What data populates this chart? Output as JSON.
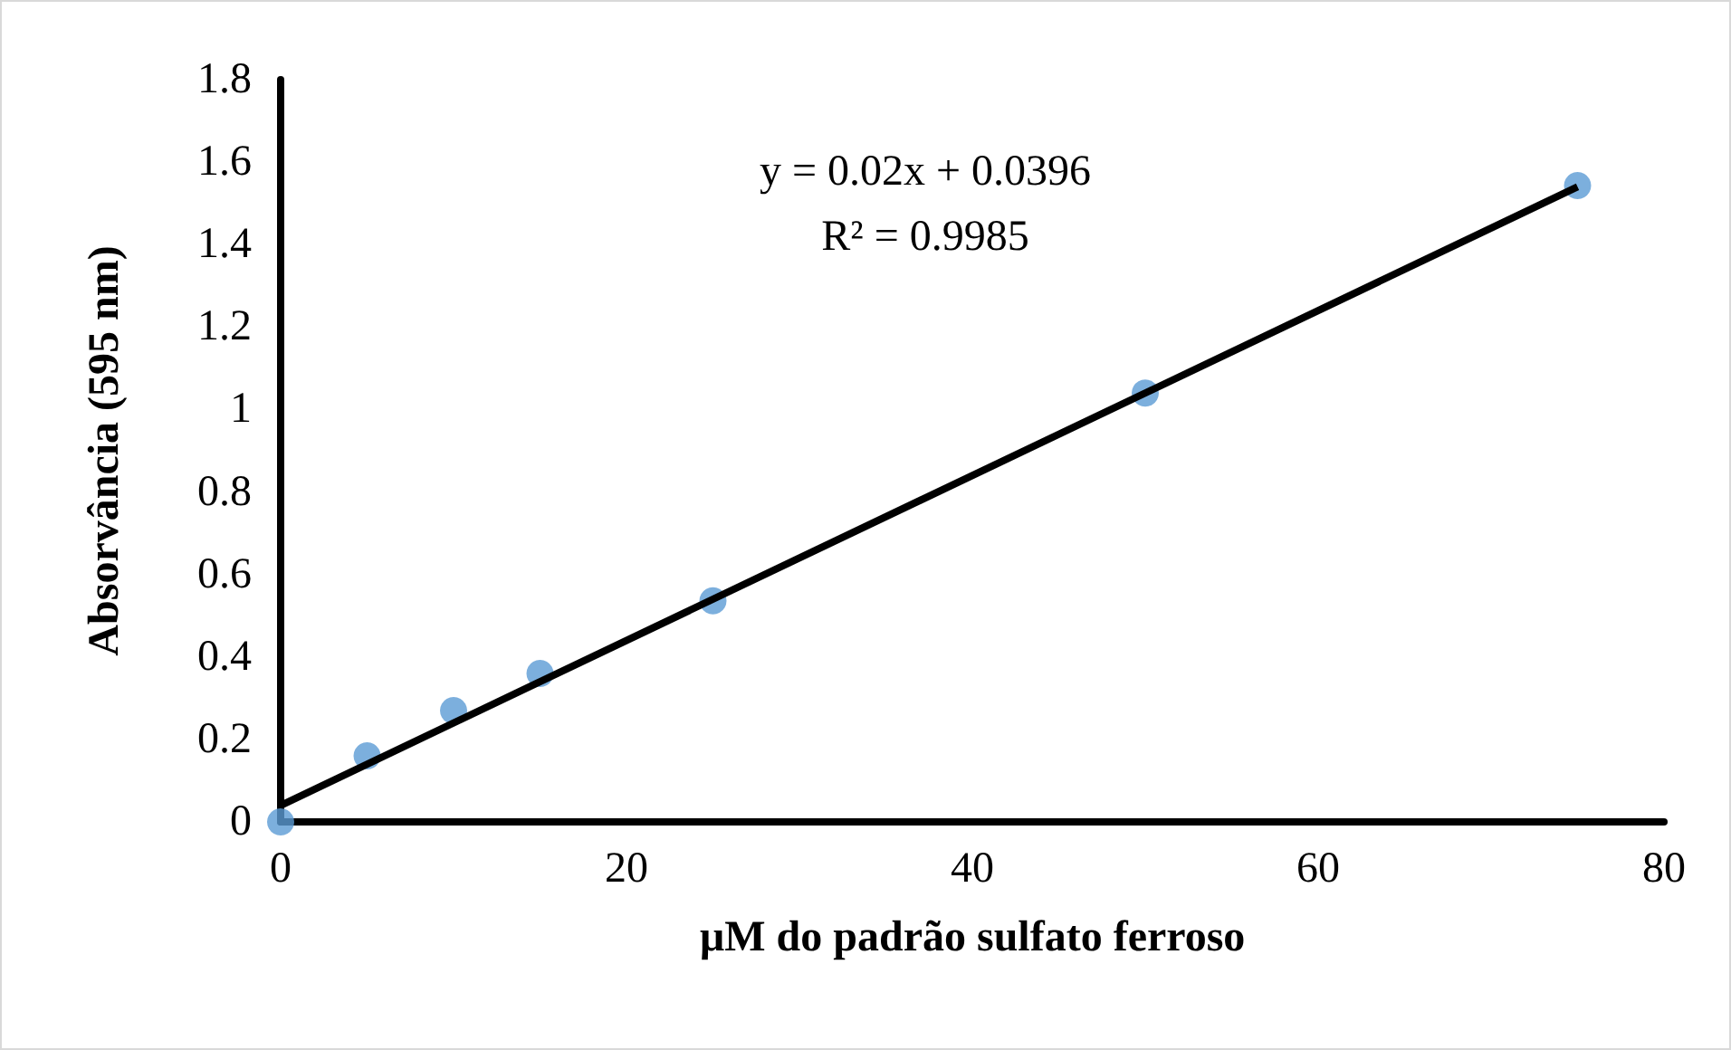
{
  "chart_data": {
    "type": "scatter",
    "xlabel": "µM do padrão sulfato ferroso",
    "ylabel": "Absorvância (595 nm)",
    "annotations": [
      "y = 0.02x + 0.0396",
      "R² = 0.9985"
    ],
    "series": [
      {
        "color": "#5b9bd5",
        "x": [
          0,
          5,
          10,
          15,
          25,
          50,
          75
        ],
        "values": [
          0,
          0.16,
          0.27,
          0.36,
          0.536,
          1.04,
          1.543
        ]
      },
      {
        "type": "line",
        "color": "#000000",
        "x": [
          0,
          75
        ],
        "values": [
          0.04,
          1.54
        ],
        "marker": "none",
        "line_style": "solid"
      }
    ],
    "xlim": [
      0,
      80
    ],
    "xticks": [
      0,
      20,
      40,
      60,
      80
    ],
    "ylim": [
      0,
      1.8
    ],
    "yticks": [
      0,
      0.2,
      0.4,
      0.6,
      0.8,
      1,
      1.2,
      1.4,
      1.6,
      1.8
    ],
    "grid": false,
    "marker": "circle"
  }
}
